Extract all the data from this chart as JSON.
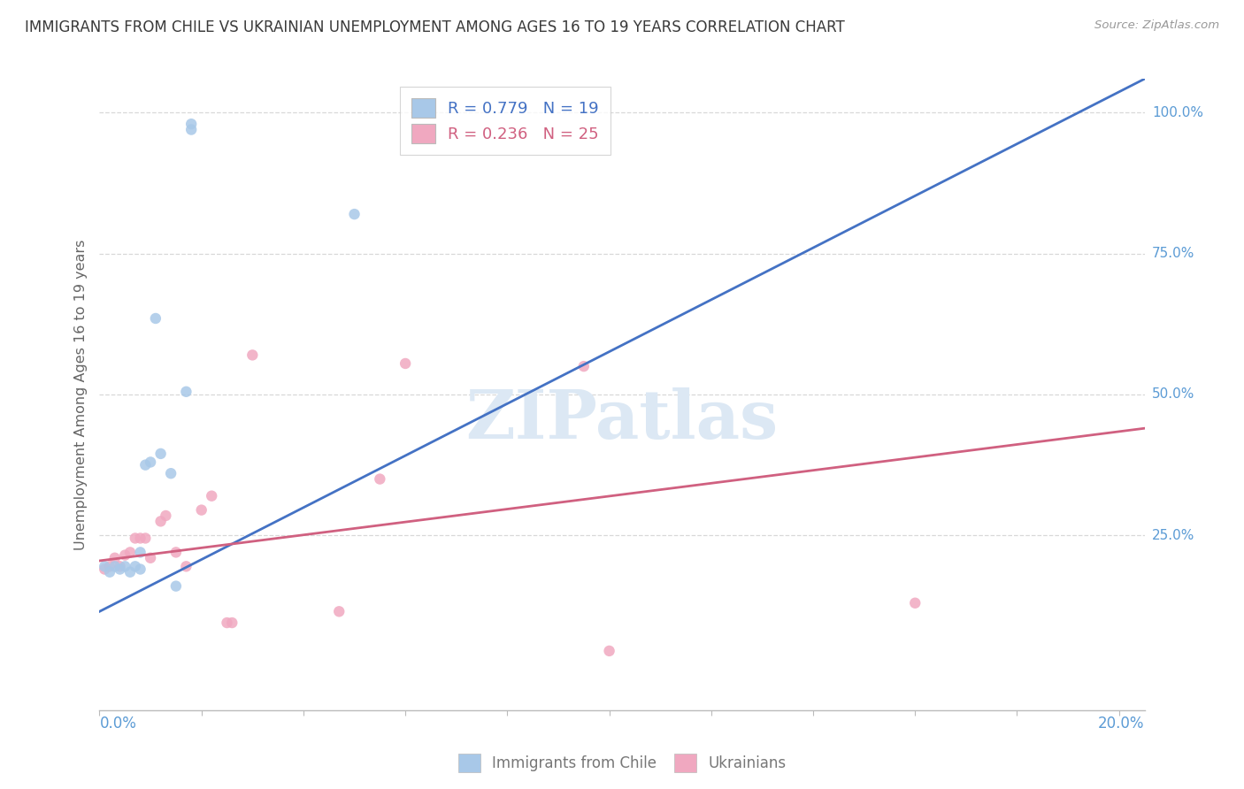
{
  "title": "IMMIGRANTS FROM CHILE VS UKRAINIAN UNEMPLOYMENT AMONG AGES 16 TO 19 YEARS CORRELATION CHART",
  "source": "Source: ZipAtlas.com",
  "ylabel": "Unemployment Among Ages 16 to 19 years",
  "right_ytick_labels": [
    "100.0%",
    "75.0%",
    "50.0%",
    "25.0%"
  ],
  "right_ytick_values": [
    1.0,
    0.75,
    0.5,
    0.25
  ],
  "xlim": [
    0.0,
    0.205
  ],
  "ylim": [
    -0.06,
    1.06
  ],
  "legend_r1": "R = 0.779",
  "legend_n1": "N = 19",
  "legend_r2": "R = 0.236",
  "legend_n2": "N = 25",
  "chile_dot_color": "#a8c8e8",
  "ukraine_dot_color": "#f0a8c0",
  "chile_line_color": "#4472c4",
  "ukraine_line_color": "#d06080",
  "chile_scatter_x": [
    0.001,
    0.002,
    0.003,
    0.004,
    0.005,
    0.006,
    0.007,
    0.008,
    0.008,
    0.009,
    0.01,
    0.011,
    0.012,
    0.014,
    0.015,
    0.017,
    0.018,
    0.018,
    0.05
  ],
  "chile_scatter_y": [
    0.195,
    0.185,
    0.195,
    0.19,
    0.195,
    0.185,
    0.195,
    0.19,
    0.22,
    0.375,
    0.38,
    0.635,
    0.395,
    0.36,
    0.16,
    0.505,
    0.98,
    0.97,
    0.82
  ],
  "ukraine_scatter_x": [
    0.001,
    0.002,
    0.003,
    0.004,
    0.005,
    0.006,
    0.007,
    0.008,
    0.009,
    0.01,
    0.012,
    0.013,
    0.015,
    0.017,
    0.02,
    0.022,
    0.025,
    0.026,
    0.03,
    0.047,
    0.055,
    0.06,
    0.095,
    0.1,
    0.16
  ],
  "ukraine_scatter_y": [
    0.19,
    0.195,
    0.21,
    0.195,
    0.215,
    0.22,
    0.245,
    0.245,
    0.245,
    0.21,
    0.275,
    0.285,
    0.22,
    0.195,
    0.295,
    0.32,
    0.095,
    0.095,
    0.57,
    0.115,
    0.35,
    0.555,
    0.55,
    0.045,
    0.13
  ],
  "chile_trend_x": [
    0.0,
    0.205
  ],
  "chile_trend_y": [
    0.115,
    1.06
  ],
  "ukraine_trend_x": [
    0.0,
    0.205
  ],
  "ukraine_trend_y": [
    0.205,
    0.44
  ],
  "bg_color": "#ffffff",
  "grid_color": "#d8d8d8",
  "title_color": "#3a3a3a",
  "axis_label_color": "#5b9bd5",
  "watermark_text": "ZIPatlas",
  "watermark_color": "#dce8f4",
  "scatter_size": 80,
  "bottom_label1": "Immigrants from Chile",
  "bottom_label2": "Ukrainians"
}
